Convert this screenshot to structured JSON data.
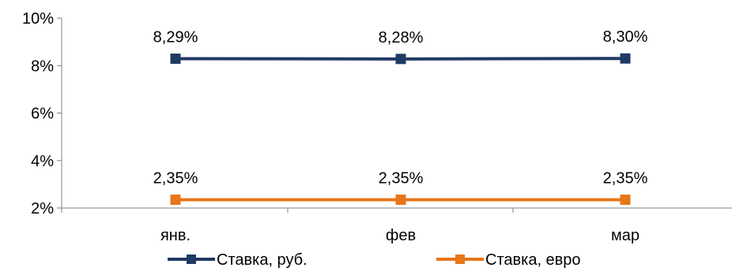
{
  "chart_data": {
    "type": "line",
    "title": "",
    "xlabel": "",
    "ylabel": "",
    "categories": [
      "янв.",
      "фев",
      "мар"
    ],
    "ylim": [
      2,
      10
    ],
    "yticks": [
      2,
      4,
      6,
      8,
      10
    ],
    "ytick_labels": [
      "2%",
      "4%",
      "6%",
      "8%",
      "10%"
    ],
    "grid": false,
    "legend_position": "bottom",
    "series": [
      {
        "name": "Ставка, руб.",
        "values": [
          8.29,
          8.28,
          8.3
        ],
        "data_labels": [
          "8,29%",
          "8,28%",
          "8,30%"
        ],
        "color": "#1f3a63",
        "marker": "square"
      },
      {
        "name": "Ставка, евро",
        "values": [
          2.35,
          2.35,
          2.35
        ],
        "data_labels": [
          "2,35%",
          "2,35%",
          "2,35%"
        ],
        "color": "#e8761a",
        "marker": "square"
      }
    ]
  }
}
